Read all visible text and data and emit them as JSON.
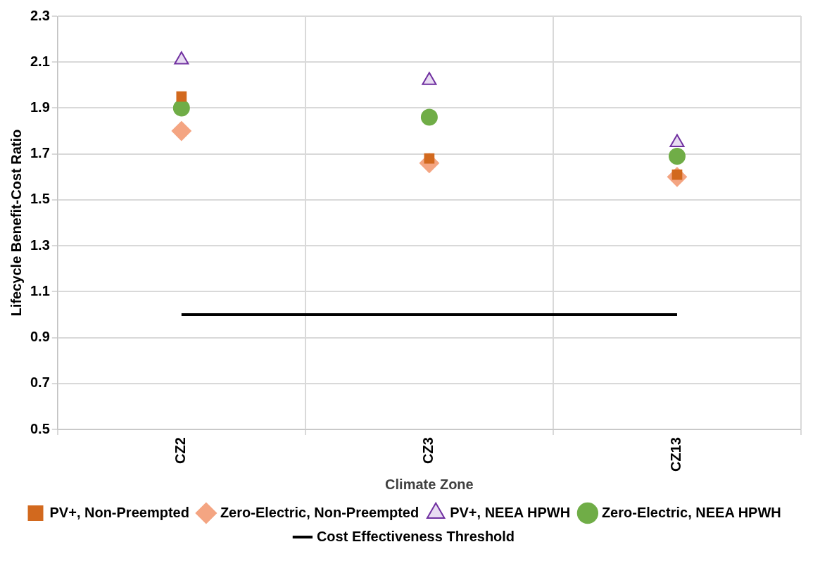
{
  "chart_data": {
    "type": "scatter",
    "xlabel": "Climate Zone",
    "ylabel": "Lifecycle Benefit-Cost Ratio",
    "categories": [
      "CZ2",
      "CZ3",
      "CZ13"
    ],
    "series": [
      {
        "name": "PV+, Non-Preempted",
        "color": "#d2691e",
        "marker": "square",
        "values": [
          1.95,
          1.68,
          1.61
        ]
      },
      {
        "name": "Zero-Electric, Non-Preempted",
        "color": "#f4a582",
        "marker": "diamond",
        "values": [
          1.8,
          1.66,
          1.6
        ]
      },
      {
        "name": "PV+, NEEA HPWH",
        "color": "#7030a0",
        "marker": "triangle",
        "values": [
          2.11,
          2.02,
          1.75
        ]
      },
      {
        "name": "Zero-Electric, NEEA HPWH",
        "color": "#70ad47",
        "marker": "circle",
        "values": [
          1.9,
          1.86,
          1.69
        ]
      },
      {
        "name": "Cost Effectiveness Threshold",
        "type": "line",
        "color": "#000000",
        "marker": "none",
        "line_style": "solid",
        "values": [
          1.0,
          1.0,
          1.0
        ]
      }
    ],
    "ylim": [
      0.5,
      2.3
    ],
    "yticks": [
      0.5,
      0.7,
      0.9,
      1.1,
      1.3,
      1.5,
      1.7,
      1.9,
      2.1,
      2.3
    ],
    "grid": true,
    "legend": "bottom"
  }
}
